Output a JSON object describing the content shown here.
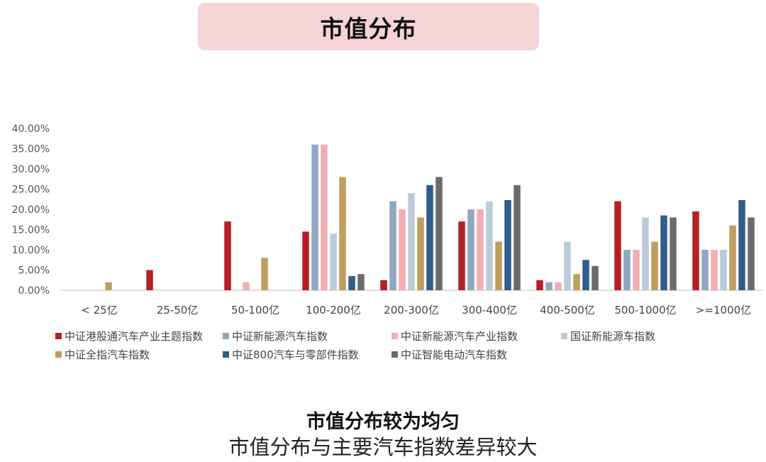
{
  "title": "市值分布",
  "caption": {
    "bold": "市值分布较为均匀",
    "normal": "市值分布与主要汽车指数差异较大"
  },
  "chart_data": {
    "type": "bar",
    "categories": [
      "< 25亿",
      "25-50亿",
      "50-100亿",
      "100-200亿",
      "200-300亿",
      "300-400亿",
      "400-500亿",
      "500-1000亿",
      ">=1000亿"
    ],
    "ylim": [
      0,
      40
    ],
    "yticks": [
      "0.00%",
      "5.00%",
      "10.00%",
      "15.00%",
      "20.00%",
      "25.00%",
      "30.00%",
      "35.00%",
      "40.00%"
    ],
    "legend_position": "bottom",
    "grid": false,
    "series": [
      {
        "name": "中证港股通汽车产业主题指数",
        "color": "#b52025",
        "values": [
          0,
          5,
          17,
          14.5,
          2.5,
          17,
          2.5,
          22,
          19.5
        ]
      },
      {
        "name": "中证新能源汽车指数",
        "color": "#8fa7bf",
        "values": [
          0,
          0,
          0,
          36,
          22,
          20,
          2,
          10,
          10
        ]
      },
      {
        "name": "中证新能源汽车产业指数",
        "color": "#f2aeb4",
        "values": [
          0,
          0,
          2,
          36,
          20,
          20,
          2,
          10,
          10
        ]
      },
      {
        "name": "国证新能源车指数",
        "color": "#bccbd9",
        "values": [
          0,
          0,
          0,
          14,
          24,
          22,
          12,
          18,
          10
        ]
      },
      {
        "name": "中证全指汽车指数",
        "color": "#bf9e5e",
        "values": [
          2,
          0,
          8,
          28,
          18,
          12,
          4,
          12,
          16
        ]
      },
      {
        "name": "中证800汽车与零部件指数",
        "color": "#2f5d8c",
        "values": [
          0,
          0,
          0,
          3.5,
          26,
          22.3,
          7.5,
          18.5,
          22.3
        ]
      },
      {
        "name": "中证智能电动汽车指数",
        "color": "#6b6b6b",
        "values": [
          0,
          0,
          0,
          4,
          28,
          26,
          6,
          18,
          18
        ]
      }
    ]
  }
}
